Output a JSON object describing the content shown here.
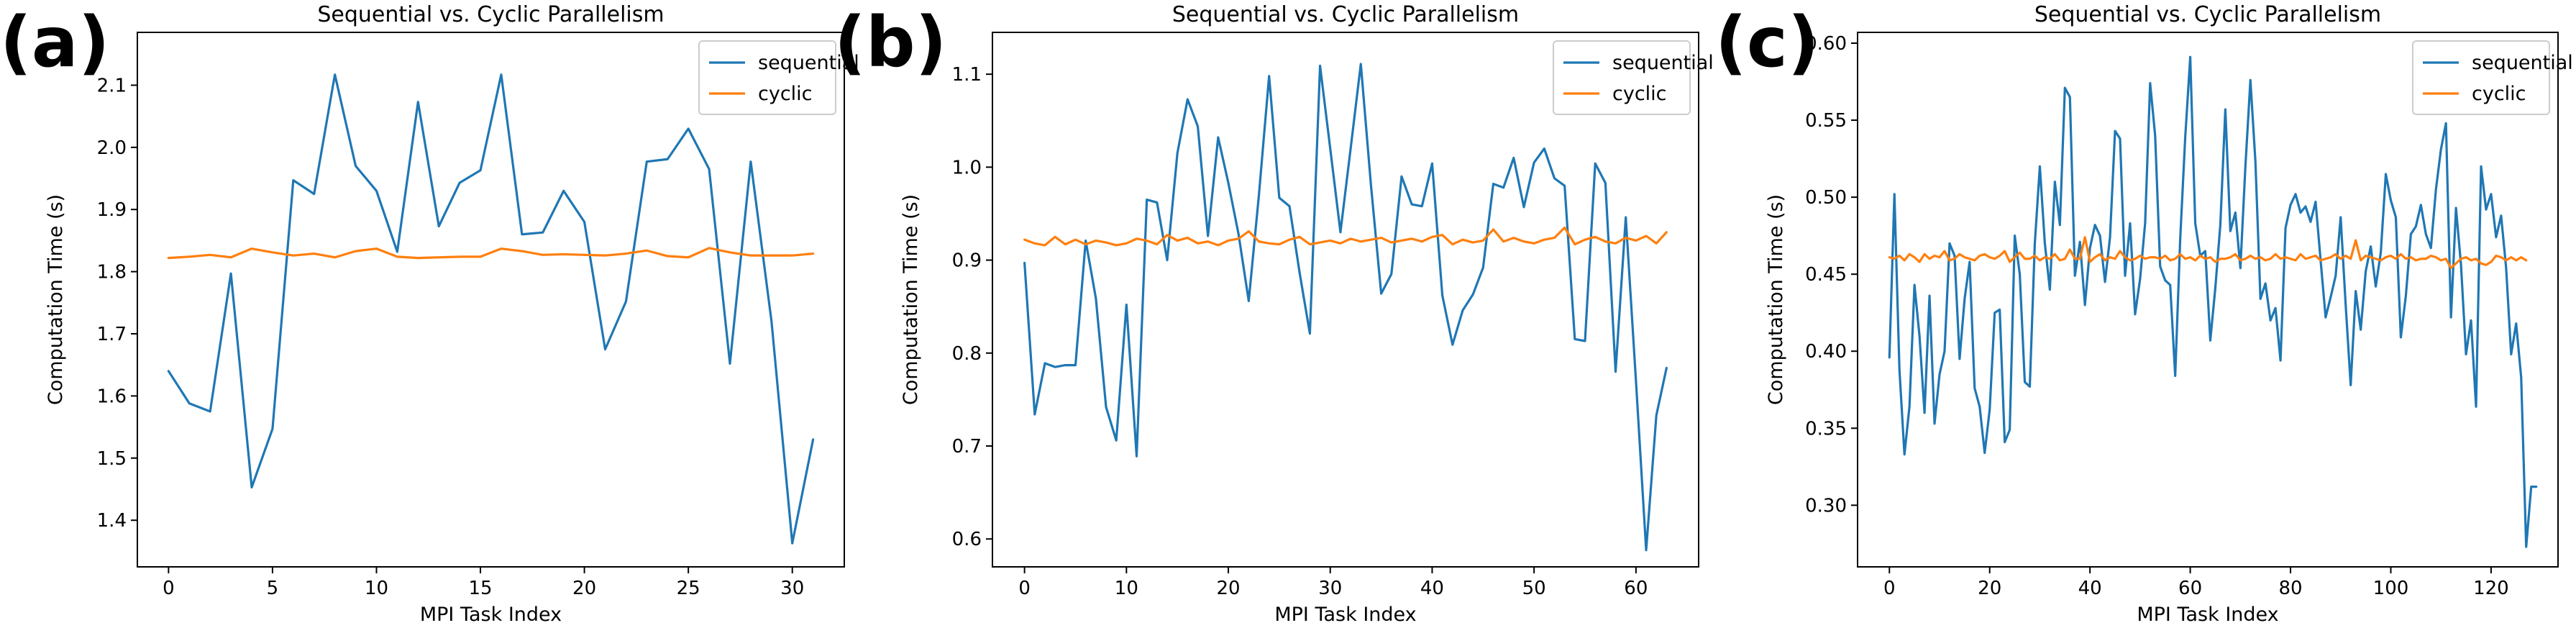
{
  "chart_data": [
    {
      "panel": "(a)",
      "type": "line",
      "title": "Sequential vs. Cyclic Parallelism",
      "xlabel": "MPI Task Index",
      "ylabel": "Computation Time (s)",
      "xlim": [
        -1.5,
        32.5
      ],
      "ylim": [
        1.325,
        2.185
      ],
      "xticks": [
        0,
        5,
        10,
        15,
        20,
        25,
        30
      ],
      "yticks": [
        1.4,
        1.5,
        1.6,
        1.7,
        1.8,
        1.9,
        2.0,
        2.1
      ],
      "ytick_decimals": 1,
      "legend": {
        "location": "upper right",
        "entries": [
          "sequential",
          "cyclic"
        ]
      },
      "grid": false,
      "series": [
        {
          "name": "sequential",
          "color": "#1f77b4",
          "values": [
            1.64,
            1.588,
            1.575,
            1.797,
            1.453,
            1.547,
            1.947,
            1.925,
            2.117,
            1.97,
            1.93,
            1.832,
            2.073,
            1.873,
            1.943,
            1.963,
            2.117,
            1.86,
            1.863,
            1.93,
            1.88,
            1.675,
            1.752,
            1.977,
            1.981,
            2.03,
            1.965,
            1.652,
            1.977,
            1.72,
            1.363,
            1.53
          ]
        },
        {
          "name": "cyclic",
          "color": "#ff7f0e",
          "values": [
            1.822,
            1.824,
            1.827,
            1.823,
            1.837,
            1.831,
            1.826,
            1.829,
            1.823,
            1.833,
            1.837,
            1.824,
            1.822,
            1.823,
            1.824,
            1.824,
            1.837,
            1.833,
            1.827,
            1.828,
            1.827,
            1.826,
            1.829,
            1.834,
            1.825,
            1.823,
            1.838,
            1.831,
            1.826,
            1.826,
            1.826,
            1.829
          ]
        }
      ]
    },
    {
      "panel": "(b)",
      "type": "line",
      "title": "Sequential vs. Cyclic Parallelism",
      "xlabel": "MPI Task Index",
      "ylabel": "Computation Time (s)",
      "xlim": [
        -3.15,
        66.15
      ],
      "ylim": [
        0.57,
        1.145
      ],
      "xticks": [
        0,
        10,
        20,
        30,
        40,
        50,
        60
      ],
      "yticks": [
        0.6,
        0.7,
        0.8,
        0.9,
        1.0,
        1.1
      ],
      "ytick_decimals": 1,
      "legend": {
        "location": "upper right",
        "entries": [
          "sequential",
          "cyclic"
        ]
      },
      "grid": false,
      "series": [
        {
          "name": "sequential",
          "color": "#1f77b4",
          "values": [
            0.897,
            0.734,
            0.789,
            0.785,
            0.787,
            0.787,
            0.921,
            0.859,
            0.742,
            0.706,
            0.852,
            0.689,
            0.965,
            0.962,
            0.9,
            1.015,
            1.073,
            1.044,
            0.926,
            1.032,
            0.983,
            0.928,
            0.856,
            0.97,
            1.098,
            0.967,
            0.958,
            0.886,
            0.821,
            1.109,
            1.02,
            0.93,
            1.02,
            1.111,
            0.98,
            0.864,
            0.885,
            0.99,
            0.96,
            0.958,
            1.004,
            0.862,
            0.809,
            0.846,
            0.863,
            0.892,
            0.982,
            0.978,
            1.01,
            0.957,
            1.005,
            1.02,
            0.988,
            0.98,
            0.815,
            0.813,
            1.004,
            0.983,
            0.78,
            0.946,
            0.77,
            0.588,
            0.733,
            0.784
          ]
        },
        {
          "name": "cyclic",
          "color": "#ff7f0e",
          "values": [
            0.922,
            0.918,
            0.916,
            0.925,
            0.917,
            0.922,
            0.917,
            0.921,
            0.919,
            0.916,
            0.918,
            0.923,
            0.921,
            0.917,
            0.927,
            0.921,
            0.924,
            0.918,
            0.92,
            0.916,
            0.921,
            0.923,
            0.931,
            0.92,
            0.918,
            0.917,
            0.922,
            0.925,
            0.917,
            0.919,
            0.921,
            0.918,
            0.923,
            0.92,
            0.922,
            0.924,
            0.919,
            0.921,
            0.923,
            0.92,
            0.925,
            0.927,
            0.917,
            0.922,
            0.919,
            0.921,
            0.933,
            0.92,
            0.924,
            0.92,
            0.918,
            0.922,
            0.924,
            0.935,
            0.917,
            0.922,
            0.925,
            0.92,
            0.918,
            0.924,
            0.921,
            0.926,
            0.918,
            0.93
          ]
        }
      ]
    },
    {
      "panel": "(c)",
      "type": "line",
      "title": "Sequential vs. Cyclic Parallelism",
      "xlabel": "MPI Task Index",
      "ylabel": "Computation Time (s)",
      "xlim": [
        -6.35,
        133.35
      ],
      "ylim": [
        0.26,
        0.607
      ],
      "xticks": [
        0,
        20,
        40,
        60,
        80,
        100,
        120
      ],
      "yticks": [
        0.3,
        0.35,
        0.4,
        0.45,
        0.5,
        0.55,
        0.6
      ],
      "ytick_decimals": 2,
      "legend": {
        "location": "upper right",
        "entries": [
          "sequential",
          "cyclic"
        ]
      },
      "grid": false,
      "series": [
        {
          "name": "sequential",
          "color": "#1f77b4",
          "values": [
            0.396,
            0.502,
            0.388,
            0.333,
            0.364,
            0.443,
            0.41,
            0.36,
            0.436,
            0.353,
            0.385,
            0.4,
            0.47,
            0.462,
            0.395,
            0.434,
            0.458,
            0.376,
            0.364,
            0.334,
            0.362,
            0.425,
            0.427,
            0.341,
            0.349,
            0.475,
            0.45,
            0.38,
            0.377,
            0.47,
            0.52,
            0.47,
            0.44,
            0.51,
            0.482,
            0.571,
            0.565,
            0.449,
            0.471,
            0.43,
            0.467,
            0.482,
            0.475,
            0.445,
            0.474,
            0.543,
            0.538,
            0.449,
            0.483,
            0.424,
            0.447,
            0.483,
            0.574,
            0.54,
            0.455,
            0.446,
            0.443,
            0.384,
            0.473,
            0.539,
            0.591,
            0.483,
            0.462,
            0.465,
            0.407,
            0.441,
            0.482,
            0.557,
            0.478,
            0.49,
            0.454,
            0.52,
            0.576,
            0.523,
            0.434,
            0.444,
            0.42,
            0.428,
            0.394,
            0.48,
            0.495,
            0.502,
            0.49,
            0.494,
            0.484,
            0.497,
            0.459,
            0.422,
            0.435,
            0.449,
            0.487,
            0.43,
            0.378,
            0.439,
            0.414,
            0.452,
            0.468,
            0.442,
            0.464,
            0.515,
            0.498,
            0.487,
            0.409,
            0.436,
            0.476,
            0.481,
            0.495,
            0.476,
            0.467,
            0.505,
            0.531,
            0.548,
            0.422,
            0.493,
            0.456,
            0.398,
            0.42,
            0.364,
            0.52,
            0.492,
            0.502,
            0.474,
            0.488,
            0.454,
            0.398,
            0.418,
            0.383,
            0.273,
            0.312,
            0.312
          ]
        },
        {
          "name": "cyclic",
          "color": "#ff7f0e",
          "values": [
            0.461,
            0.46,
            0.462,
            0.459,
            0.463,
            0.461,
            0.458,
            0.463,
            0.46,
            0.462,
            0.461,
            0.465,
            0.459,
            0.46,
            0.463,
            0.461,
            0.46,
            0.459,
            0.462,
            0.463,
            0.461,
            0.46,
            0.462,
            0.465,
            0.458,
            0.461,
            0.464,
            0.46,
            0.46,
            0.462,
            0.459,
            0.461,
            0.46,
            0.463,
            0.459,
            0.46,
            0.466,
            0.46,
            0.46,
            0.474,
            0.458,
            0.461,
            0.463,
            0.459,
            0.461,
            0.46,
            0.465,
            0.461,
            0.459,
            0.46,
            0.462,
            0.46,
            0.461,
            0.461,
            0.46,
            0.462,
            0.459,
            0.46,
            0.463,
            0.46,
            0.461,
            0.459,
            0.462,
            0.46,
            0.461,
            0.458,
            0.46,
            0.46,
            0.461,
            0.463,
            0.459,
            0.46,
            0.462,
            0.46,
            0.461,
            0.459,
            0.46,
            0.463,
            0.46,
            0.461,
            0.46,
            0.459,
            0.463,
            0.46,
            0.461,
            0.462,
            0.459,
            0.46,
            0.461,
            0.463,
            0.46,
            0.462,
            0.46,
            0.472,
            0.459,
            0.462,
            0.461,
            0.46,
            0.459,
            0.461,
            0.462,
            0.46,
            0.463,
            0.46,
            0.461,
            0.459,
            0.46,
            0.46,
            0.462,
            0.461,
            0.459,
            0.46,
            0.454,
            0.457,
            0.46,
            0.461,
            0.459,
            0.46,
            0.457,
            0.456,
            0.458,
            0.462,
            0.461,
            0.459,
            0.461,
            0.459,
            0.461,
            0.459
          ]
        }
      ]
    }
  ]
}
